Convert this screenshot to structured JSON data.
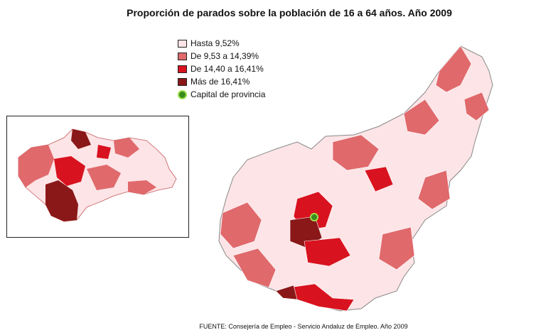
{
  "title": "Proporción de parados sobre la población de 16 a 64 años. Año 2009",
  "legend": {
    "items": [
      {
        "label": "Hasta 9,52%",
        "color": "#fde4e6"
      },
      {
        "label": "De 9,53 a 14,39%",
        "color": "#e0696c"
      },
      {
        "label": "De 14,40 a 16,41%",
        "color": "#d9121f"
      },
      {
        "label": "Más de 16,41%",
        "color": "#8a1818"
      }
    ],
    "capital_label": "Capital de provincia"
  },
  "source": "FUENTE: Consejería de Empleo - Servicio Andaluz de Empleo. Año 2009",
  "icons": {
    "capital_marker": "capital-marker-icon"
  }
}
